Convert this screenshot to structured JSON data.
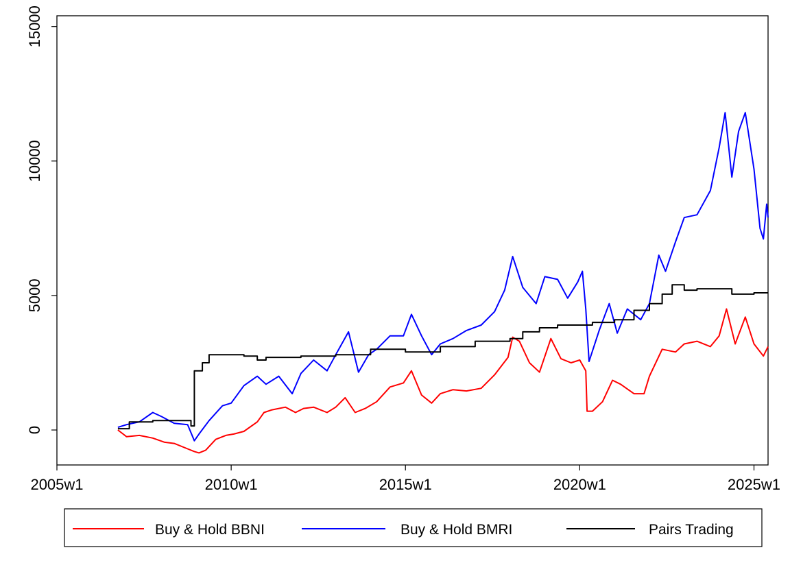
{
  "chart_data": {
    "type": "line",
    "title": "",
    "xlabel": "",
    "ylabel": "",
    "xlim": [
      "2005w1",
      "2025w22"
    ],
    "ylim": [
      -1300,
      15400
    ],
    "grid": false,
    "legend_position": "bottom",
    "x_ticks": [
      "2005w1",
      "2010w1",
      "2015w1",
      "2020w1",
      "2025w1"
    ],
    "y_ticks": [
      0,
      5000,
      10000,
      15000
    ],
    "series": [
      {
        "name": "Buy & Hold BBNI",
        "color": "#ff0000",
        "points": [
          [
            "2006w40",
            0
          ],
          [
            "2007w1",
            -250
          ],
          [
            "2007w20",
            -200
          ],
          [
            "2007w40",
            -300
          ],
          [
            "2008w5",
            -450
          ],
          [
            "2008w20",
            -500
          ],
          [
            "2008w40",
            -700
          ],
          [
            "2008w50",
            -800
          ],
          [
            "2009w5",
            -850
          ],
          [
            "2009w15",
            -750
          ],
          [
            "2009w30",
            -350
          ],
          [
            "2009w45",
            -200
          ],
          [
            "2010w5",
            -150
          ],
          [
            "2010w20",
            -50
          ],
          [
            "2010w40",
            300
          ],
          [
            "2010w50",
            650
          ],
          [
            "2011w10",
            750
          ],
          [
            "2011w30",
            850
          ],
          [
            "2011w45",
            650
          ],
          [
            "2012w5",
            800
          ],
          [
            "2012w20",
            850
          ],
          [
            "2012w40",
            650
          ],
          [
            "2013w1",
            850
          ],
          [
            "2013w15",
            1200
          ],
          [
            "2013w30",
            650
          ],
          [
            "2013w45",
            800
          ],
          [
            "2014w10",
            1050
          ],
          [
            "2014w30",
            1600
          ],
          [
            "2014w50",
            1750
          ],
          [
            "2015w10",
            2200
          ],
          [
            "2015w25",
            1300
          ],
          [
            "2015w40",
            1000
          ],
          [
            "2016w1",
            1350
          ],
          [
            "2016w20",
            1500
          ],
          [
            "2016w40",
            1450
          ],
          [
            "2017w10",
            1550
          ],
          [
            "2017w30",
            2050
          ],
          [
            "2017w50",
            2700
          ],
          [
            "2018w5",
            3450
          ],
          [
            "2018w15",
            3300
          ],
          [
            "2018w30",
            2500
          ],
          [
            "2018w45",
            2150
          ],
          [
            "2019w10",
            3400
          ],
          [
            "2019w25",
            2650
          ],
          [
            "2019w40",
            2500
          ],
          [
            "2020w1",
            2600
          ],
          [
            "2020w10",
            2200
          ],
          [
            "2020w12",
            700
          ],
          [
            "2020w20",
            700
          ],
          [
            "2020w35",
            1050
          ],
          [
            "2020w50",
            1850
          ],
          [
            "2021w10",
            1700
          ],
          [
            "2021w30",
            1350
          ],
          [
            "2021w45",
            1350
          ],
          [
            "2022w1",
            2000
          ],
          [
            "2022w20",
            3000
          ],
          [
            "2022w40",
            2900
          ],
          [
            "2023w1",
            3200
          ],
          [
            "2023w20",
            3300
          ],
          [
            "2023w40",
            3100
          ],
          [
            "2024w1",
            3500
          ],
          [
            "2024w12",
            4500
          ],
          [
            "2024w25",
            3200
          ],
          [
            "2024w40",
            4200
          ],
          [
            "2025w1",
            3200
          ],
          [
            "2025w15",
            2750
          ],
          [
            "2025w22",
            3100
          ]
        ]
      },
      {
        "name": "Buy & Hold BMRI",
        "color": "#0000ff",
        "points": [
          [
            "2006w40",
            100
          ],
          [
            "2007w1",
            200
          ],
          [
            "2007w20",
            300
          ],
          [
            "2007w40",
            650
          ],
          [
            "2008w1",
            500
          ],
          [
            "2008w20",
            250
          ],
          [
            "2008w40",
            200
          ],
          [
            "2008w50",
            -400
          ],
          [
            "2009w5",
            -150
          ],
          [
            "2009w20",
            350
          ],
          [
            "2009w40",
            900
          ],
          [
            "2010w1",
            1000
          ],
          [
            "2010w20",
            1650
          ],
          [
            "2010w40",
            2000
          ],
          [
            "2011w1",
            1700
          ],
          [
            "2011w20",
            2000
          ],
          [
            "2011w40",
            1350
          ],
          [
            "2012w1",
            2100
          ],
          [
            "2012w20",
            2600
          ],
          [
            "2012w40",
            2200
          ],
          [
            "2013w1",
            2800
          ],
          [
            "2013w20",
            3650
          ],
          [
            "2013w35",
            2150
          ],
          [
            "2013w50",
            2800
          ],
          [
            "2014w10",
            3000
          ],
          [
            "2014w30",
            3500
          ],
          [
            "2014w50",
            3500
          ],
          [
            "2015w10",
            4300
          ],
          [
            "2015w25",
            3500
          ],
          [
            "2015w40",
            2800
          ],
          [
            "2016w1",
            3200
          ],
          [
            "2016w20",
            3400
          ],
          [
            "2016w40",
            3700
          ],
          [
            "2017w10",
            3900
          ],
          [
            "2017w30",
            4400
          ],
          [
            "2017w45",
            5200
          ],
          [
            "2018w5",
            6450
          ],
          [
            "2018w20",
            5300
          ],
          [
            "2018w40",
            4700
          ],
          [
            "2019w1",
            5700
          ],
          [
            "2019w20",
            5600
          ],
          [
            "2019w35",
            4900
          ],
          [
            "2019w50",
            5500
          ],
          [
            "2020w5",
            5900
          ],
          [
            "2020w10",
            4500
          ],
          [
            "2020w15",
            2550
          ],
          [
            "2020w30",
            3700
          ],
          [
            "2020w45",
            4700
          ],
          [
            "2021w5",
            3600
          ],
          [
            "2021w20",
            4500
          ],
          [
            "2021w40",
            4100
          ],
          [
            "2022w1",
            4700
          ],
          [
            "2022w15",
            6500
          ],
          [
            "2022w25",
            5900
          ],
          [
            "2022w40",
            7000
          ],
          [
            "2023w1",
            7900
          ],
          [
            "2023w20",
            8000
          ],
          [
            "2023w40",
            8900
          ],
          [
            "2024w1",
            10500
          ],
          [
            "2024w10",
            11800
          ],
          [
            "2024w20",
            9400
          ],
          [
            "2024w30",
            11100
          ],
          [
            "2024w40",
            11800
          ],
          [
            "2025w1",
            9700
          ],
          [
            "2025w10",
            7500
          ],
          [
            "2025w15",
            7100
          ],
          [
            "2025w20",
            8400
          ],
          [
            "2025w22",
            7900
          ]
        ]
      },
      {
        "name": "Pairs Trading",
        "color": "#000000",
        "points": [
          [
            "2006w40",
            50
          ],
          [
            "2007w5",
            300
          ],
          [
            "2007w40",
            350
          ],
          [
            "2008w20",
            350
          ],
          [
            "2008w45",
            150
          ],
          [
            "2008w50",
            2200
          ],
          [
            "2009w10",
            2500
          ],
          [
            "2009w20",
            2800
          ],
          [
            "2010w1",
            2800
          ],
          [
            "2010w20",
            2750
          ],
          [
            "2010w40",
            2600
          ],
          [
            "2011w1",
            2700
          ],
          [
            "2012w1",
            2750
          ],
          [
            "2013w1",
            2800
          ],
          [
            "2014w1",
            3000
          ],
          [
            "2015w1",
            2900
          ],
          [
            "2016w1",
            3100
          ],
          [
            "2017w1",
            3300
          ],
          [
            "2018w1",
            3400
          ],
          [
            "2018w20",
            3650
          ],
          [
            "2018w45",
            3800
          ],
          [
            "2019w20",
            3900
          ],
          [
            "2020w1",
            3900
          ],
          [
            "2020w20",
            4000
          ],
          [
            "2021w1",
            4100
          ],
          [
            "2021w30",
            4450
          ],
          [
            "2022w1",
            4700
          ],
          [
            "2022w20",
            5050
          ],
          [
            "2022w35",
            5400
          ],
          [
            "2023w1",
            5200
          ],
          [
            "2023w20",
            5250
          ],
          [
            "2024w1",
            5250
          ],
          [
            "2024w20",
            5050
          ],
          [
            "2025w1",
            5100
          ],
          [
            "2025w22",
            5100
          ]
        ]
      }
    ]
  }
}
